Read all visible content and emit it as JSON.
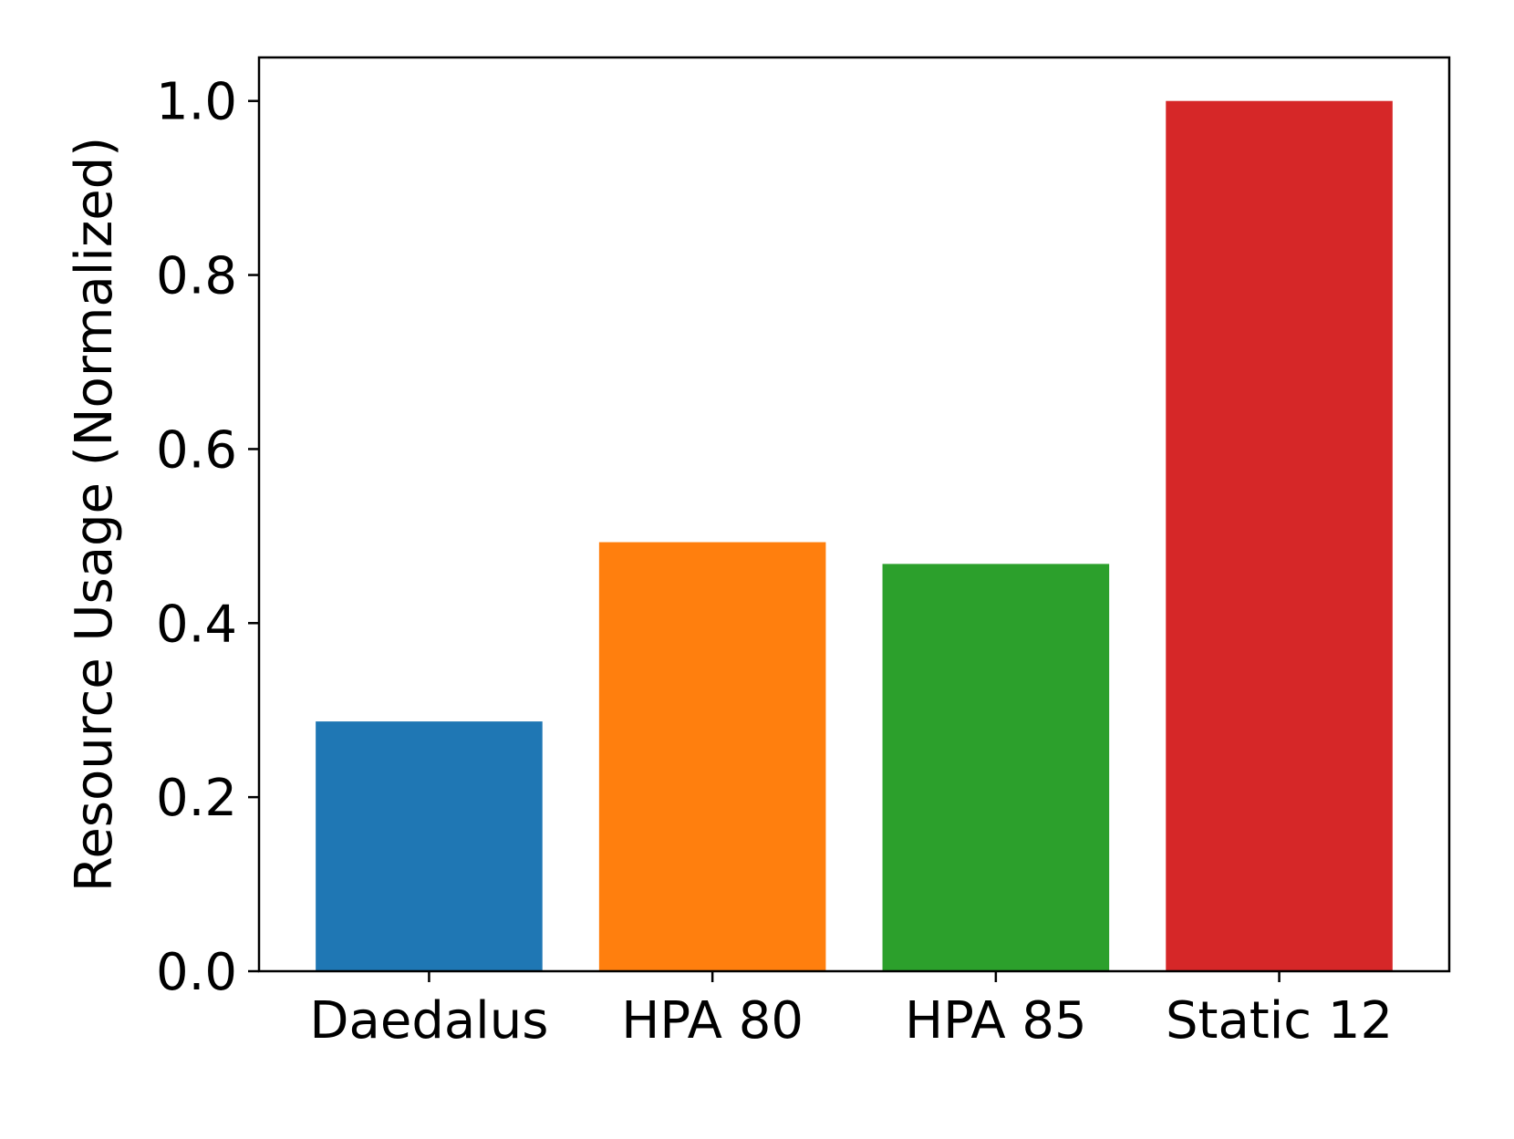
{
  "chart_data": {
    "type": "bar",
    "title": "",
    "xlabel": "",
    "ylabel": "Resource Usage (Normalized)",
    "categories": [
      "Daedalus",
      "HPA 80",
      "HPA 85",
      "Static 12"
    ],
    "values": [
      0.287,
      0.493,
      0.468,
      1.0
    ],
    "colors": [
      "#1f77b4",
      "#ff7f0e",
      "#2ca02c",
      "#d62728"
    ],
    "ylim": [
      0,
      1.05
    ],
    "yticks": [
      0.0,
      0.2,
      0.4,
      0.6,
      0.8,
      1.0
    ],
    "ytick_labels": [
      "0.0",
      "0.2",
      "0.4",
      "0.6",
      "0.8",
      "1.0"
    ],
    "grid": false,
    "legend": "none"
  }
}
